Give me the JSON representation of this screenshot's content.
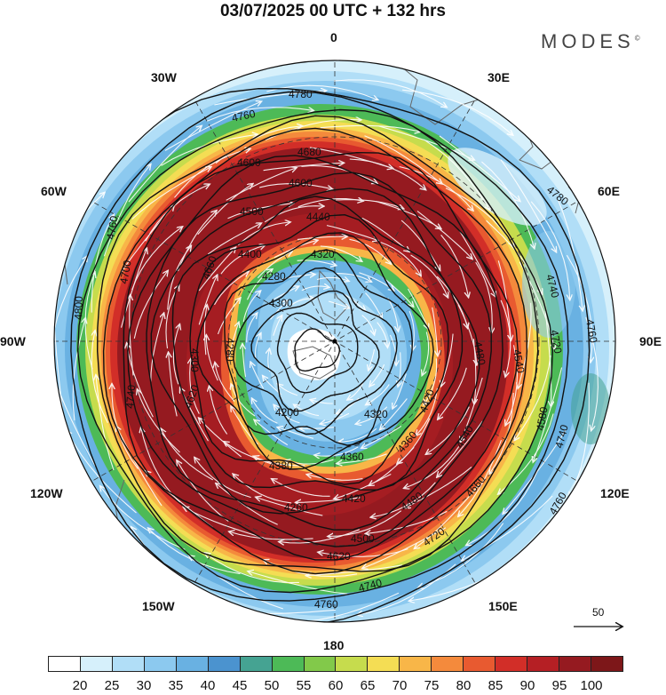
{
  "title": "03/07/2025  00 UTC  + 132 hrs",
  "brand": "MODES",
  "brand_mark": "©",
  "longitude_labels": {
    "0": "0",
    "30W": "30W",
    "30E": "30E",
    "60W": "60W",
    "60E": "60E",
    "90W": "90W",
    "90E": "90E",
    "120W": "120W",
    "120E": "120E",
    "150W": "150W",
    "150E": "150E",
    "180": "180"
  },
  "contour_labels": [
    "4780",
    "4760",
    "4680",
    "4600",
    "4500",
    "4440",
    "4400",
    "4320",
    "4280",
    "4200",
    "4260",
    "4300",
    "4360",
    "4380",
    "4420",
    "4480",
    "4540",
    "4580",
    "4620",
    "4640",
    "4660",
    "4700",
    "4720",
    "4740",
    "4800"
  ],
  "reference_vector": {
    "label": "50"
  },
  "legend": {
    "ticks": [
      "20",
      "25",
      "30",
      "35",
      "40",
      "45",
      "50",
      "55",
      "60",
      "65",
      "70",
      "75",
      "80",
      "85",
      "90",
      "95",
      "100"
    ],
    "colors": [
      "#ffffff",
      "#d6f0fb",
      "#b1def7",
      "#8cc9ef",
      "#69b1e2",
      "#4b93cf",
      "#45a392",
      "#4dba57",
      "#82c94a",
      "#c6dc4d",
      "#f4dd54",
      "#f8b648",
      "#f48a3c",
      "#e85a30",
      "#d22e28",
      "#b51f24",
      "#951a20",
      "#7d1719"
    ]
  },
  "colors": {
    "land_outline": "#555555",
    "contour": "#111111",
    "streamline": "#ffffff"
  }
}
